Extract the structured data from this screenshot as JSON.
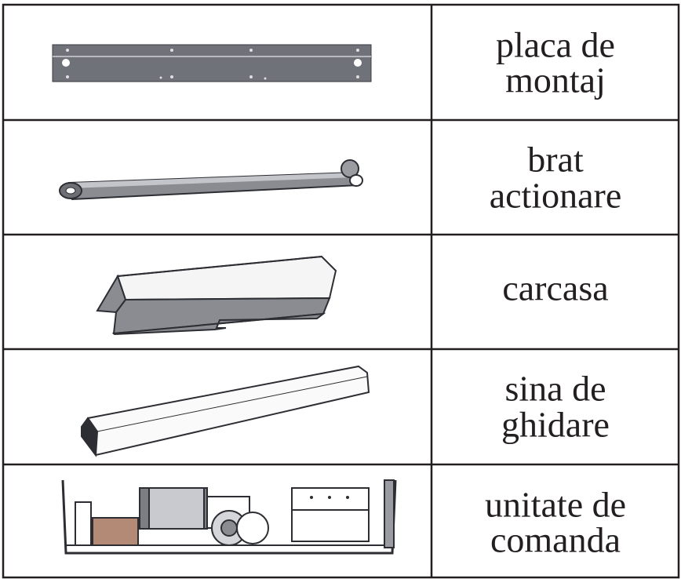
{
  "table": {
    "rows": [
      [
        "placa de",
        "montaj"
      ],
      [
        "brat",
        "actionare"
      ],
      [
        "carcasa"
      ],
      [
        "sina de",
        "ghidare"
      ],
      [
        "unitate de",
        "comanda"
      ]
    ]
  }
}
